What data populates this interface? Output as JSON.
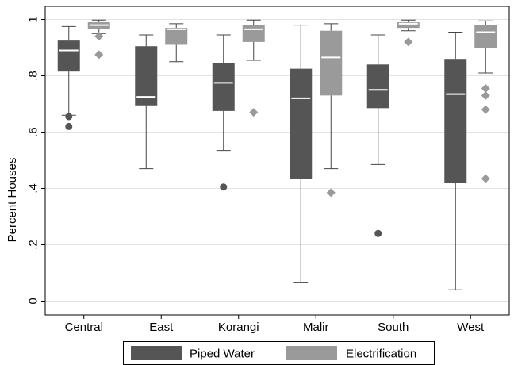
{
  "chart_data": {
    "type": "box",
    "title": "",
    "xlabel": "",
    "ylabel": "Percent Houses",
    "ylim": [
      0,
      1
    ],
    "y_ticks": [
      {
        "value": 0,
        "label": "0"
      },
      {
        "value": 0.2,
        "label": ".2"
      },
      {
        "value": 0.4,
        "label": ".4"
      },
      {
        "value": 0.6,
        "label": ".6"
      },
      {
        "value": 0.8,
        "label": ".8"
      },
      {
        "value": 1,
        "label": "1"
      }
    ],
    "grid": true,
    "legend": "bottom",
    "categories": [
      "Central",
      "East",
      "Korangi",
      "Malir",
      "South",
      "West"
    ],
    "series": [
      {
        "name": "Piped Water",
        "color": "#555555",
        "outlier_marker": "circle",
        "boxes": [
          {
            "whisker_low": 0.66,
            "q1": 0.815,
            "median": 0.89,
            "q3": 0.925,
            "whisker_high": 0.975,
            "outliers": [
              0.655,
              0.62
            ]
          },
          {
            "whisker_low": 0.47,
            "q1": 0.695,
            "median": 0.725,
            "q3": 0.905,
            "whisker_high": 0.945,
            "outliers": []
          },
          {
            "whisker_low": 0.535,
            "q1": 0.675,
            "median": 0.775,
            "q3": 0.845,
            "whisker_high": 0.945,
            "outliers": [
              0.405
            ]
          },
          {
            "whisker_low": 0.065,
            "q1": 0.435,
            "median": 0.72,
            "q3": 0.825,
            "whisker_high": 0.98,
            "outliers": []
          },
          {
            "whisker_low": 0.485,
            "q1": 0.685,
            "median": 0.75,
            "q3": 0.84,
            "whisker_high": 0.945,
            "outliers": [
              0.24
            ]
          },
          {
            "whisker_low": 0.04,
            "q1": 0.42,
            "median": 0.735,
            "q3": 0.86,
            "whisker_high": 0.955,
            "outliers": []
          }
        ]
      },
      {
        "name": "Electrification",
        "color": "#9a9a9a",
        "outlier_marker": "diamond",
        "boxes": [
          {
            "whisker_low": 0.95,
            "q1": 0.965,
            "median": 0.98,
            "q3": 0.99,
            "whisker_high": 0.998,
            "outliers": [
              0.94,
              0.875
            ]
          },
          {
            "whisker_low": 0.85,
            "q1": 0.91,
            "median": 0.965,
            "q3": 0.97,
            "whisker_high": 0.985,
            "outliers": []
          },
          {
            "whisker_low": 0.855,
            "q1": 0.92,
            "median": 0.965,
            "q3": 0.98,
            "whisker_high": 0.998,
            "outliers": [
              0.67
            ]
          },
          {
            "whisker_low": 0.47,
            "q1": 0.73,
            "median": 0.865,
            "q3": 0.96,
            "whisker_high": 0.985,
            "outliers": [
              0.385
            ]
          },
          {
            "whisker_low": 0.96,
            "q1": 0.97,
            "median": 0.985,
            "q3": 0.99,
            "whisker_high": 0.998,
            "outliers": [
              0.92
            ]
          },
          {
            "whisker_low": 0.81,
            "q1": 0.9,
            "median": 0.955,
            "q3": 0.98,
            "whisker_high": 0.995,
            "outliers": [
              0.755,
              0.73,
              0.68,
              0.435
            ]
          }
        ]
      }
    ]
  }
}
